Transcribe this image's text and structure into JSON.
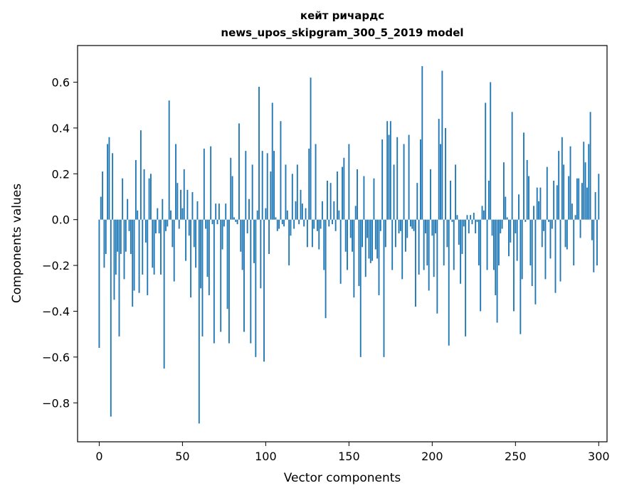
{
  "chart_data": {
    "type": "bar",
    "title_line1": "кейт ричардс",
    "title_line2": "news_upos_skipgram_300_5_2019 model",
    "xlabel": "Vector components",
    "ylabel": "Components values",
    "xlim": [
      -13,
      305
    ],
    "ylim": [
      -0.97,
      0.76
    ],
    "xticks": [
      0,
      50,
      100,
      150,
      200,
      250,
      300
    ],
    "xtick_labels": [
      "0",
      "50",
      "100",
      "150",
      "200",
      "250",
      "300"
    ],
    "yticks": [
      0.6,
      0.4,
      0.2,
      0.0,
      -0.2,
      -0.4,
      -0.6,
      -0.8
    ],
    "ytick_labels": [
      "0.6",
      "0.4",
      "0.2",
      "0.0",
      "−0.2",
      "−0.4",
      "−0.6",
      "−0.8"
    ],
    "bar_color": "#1f77b4",
    "grid": false,
    "values": [
      -0.56,
      0.1,
      0.21,
      -0.21,
      -0.15,
      0.33,
      0.36,
      -0.86,
      0.29,
      -0.35,
      -0.24,
      -0.14,
      -0.51,
      -0.15,
      0.18,
      -0.26,
      -0.14,
      0.09,
      -0.05,
      -0.15,
      -0.38,
      -0.31,
      0.26,
      0.04,
      -0.32,
      0.39,
      -0.24,
      0.22,
      -0.1,
      -0.33,
      0.18,
      0.2,
      -0.21,
      -0.24,
      -0.06,
      0.05,
      -0.06,
      -0.24,
      0.09,
      -0.65,
      -0.05,
      -0.03,
      0.52,
      0.04,
      -0.12,
      -0.27,
      0.33,
      0.16,
      -0.04,
      0.13,
      0.05,
      0.22,
      -0.18,
      0.13,
      -0.07,
      -0.34,
      0.12,
      -0.12,
      -0.21,
      0.08,
      -0.89,
      -0.3,
      -0.51,
      0.31,
      -0.04,
      -0.25,
      -0.33,
      0.32,
      -0.02,
      -0.54,
      0.07,
      -0.02,
      0.07,
      -0.49,
      -0.13,
      -0.03,
      0.07,
      -0.39,
      -0.54,
      0.27,
      0.19,
      0.01,
      -0.01,
      -0.02,
      0.42,
      -0.14,
      -0.22,
      -0.49,
      0.3,
      -0.06,
      0.09,
      -0.54,
      0.24,
      -0.19,
      -0.6,
      0.04,
      0.58,
      -0.3,
      0.3,
      -0.62,
      0.05,
      0.29,
      -0.15,
      0.21,
      0.51,
      0.3,
      0.01,
      -0.05,
      -0.04,
      0.43,
      -0.02,
      -0.03,
      0.24,
      0.04,
      -0.2,
      -0.07,
      0.2,
      -0.04,
      0.08,
      0.24,
      -0.02,
      0.13,
      0.07,
      -0.03,
      0.05,
      -0.12,
      0.31,
      0.62,
      -0.12,
      -0.04,
      0.33,
      -0.05,
      -0.13,
      -0.04,
      0.08,
      -0.22,
      -0.43,
      0.17,
      -0.03,
      0.16,
      -0.02,
      0.08,
      -0.05,
      0.21,
      0.04,
      -0.28,
      0.23,
      0.27,
      -0.14,
      -0.22,
      0.33,
      -0.08,
      -0.14,
      -0.34,
      0.06,
      0.22,
      -0.29,
      -0.6,
      -0.12,
      0.19,
      -0.25,
      -0.08,
      -0.17,
      -0.19,
      -0.18,
      0.18,
      -0.13,
      -0.17,
      -0.33,
      -0.05,
      0.35,
      -0.6,
      -0.12,
      0.43,
      0.37,
      0.43,
      -0.22,
      0.24,
      -0.12,
      0.36,
      -0.06,
      -0.05,
      -0.26,
      0.33,
      -0.14,
      -0.08,
      0.37,
      -0.03,
      -0.04,
      -0.05,
      -0.38,
      0.16,
      -0.24,
      0.35,
      0.67,
      -0.22,
      -0.06,
      -0.2,
      -0.31,
      0.22,
      -0.07,
      -0.25,
      -0.06,
      -0.41,
      0.44,
      0.33,
      0.65,
      -0.2,
      0.4,
      -0.12,
      -0.55,
      0.17,
      -0.01,
      -0.22,
      0.24,
      0.02,
      -0.11,
      -0.28,
      -0.15,
      -0.03,
      -0.51,
      0.02,
      -0.06,
      0.02,
      -0.02,
      0.03,
      -0.06,
      -0.01,
      -0.2,
      -0.4,
      0.06,
      0.04,
      0.51,
      -0.22,
      0.17,
      0.6,
      -0.07,
      -0.22,
      -0.33,
      -0.45,
      -0.2,
      -0.06,
      -0.04,
      0.25,
      0.1,
      0.01,
      -0.16,
      -0.1,
      0.47,
      -0.4,
      -0.06,
      -0.18,
      0.11,
      -0.5,
      -0.26,
      0.38,
      -0.01,
      0.26,
      0.19,
      -0.2,
      -0.29,
      0.06,
      -0.37,
      0.14,
      0.08,
      0.14,
      -0.12,
      -0.05,
      -0.26,
      0.23,
      -0.01,
      -0.17,
      -0.04,
      0.17,
      -0.32,
      0.15,
      0.3,
      -0.27,
      0.36,
      0.24,
      -0.12,
      -0.13,
      0.19,
      0.32,
      0.07,
      -0.2,
      0.02,
      0.18,
      0.18,
      -0.08,
      0.16,
      0.34,
      0.25,
      0.14,
      0.33,
      0.47,
      -0.09,
      -0.23,
      0.12,
      -0.2,
      0.2
    ]
  }
}
